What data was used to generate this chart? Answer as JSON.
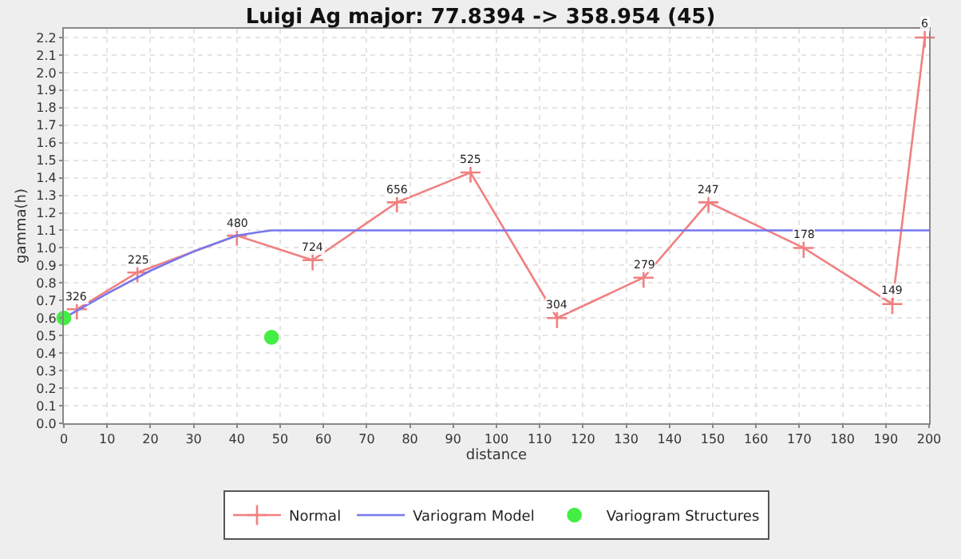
{
  "chart_data": {
    "type": "line",
    "title": "Luigi Ag major: 77.8394 -> 358.954 (45)",
    "xlabel": "distance",
    "ylabel": "gamma(h)",
    "xlim": [
      0,
      200
    ],
    "xticks": [
      0,
      10,
      20,
      30,
      40,
      50,
      60,
      70,
      80,
      90,
      100,
      110,
      120,
      130,
      140,
      150,
      160,
      170,
      180,
      190,
      200
    ],
    "ylim": [
      0,
      2.25
    ],
    "yticks": [
      {
        "value": 0,
        "label": "0.0"
      },
      0.1,
      0.2,
      0.3,
      0.4,
      0.5,
      0.6,
      0.7,
      0.8,
      0.9,
      {
        "value": 1,
        "label": "1.0"
      },
      1.1,
      1.2,
      1.3,
      1.4,
      1.5,
      1.6,
      1.7,
      1.8,
      1.9,
      {
        "value": 2,
        "label": "2.0"
      },
      2.1,
      2.2
    ],
    "annotations": [
      {
        "text": "326",
        "x": 3,
        "y": 0.65
      },
      {
        "text": "225",
        "x": 17,
        "y": 0.86
      },
      {
        "text": "480",
        "x": 40,
        "y": 1.07
      },
      {
        "text": "724",
        "x": 57.5,
        "y": 0.93
      },
      {
        "text": "656",
        "x": 77,
        "y": 1.26
      },
      {
        "text": "525",
        "x": 94,
        "y": 1.43
      },
      {
        "text": "304",
        "x": 114,
        "y": 0.6
      },
      {
        "text": "279",
        "x": 134,
        "y": 0.83
      },
      {
        "text": "247",
        "x": 149,
        "y": 1.26
      },
      {
        "text": "178",
        "x": 171,
        "y": 1.0
      },
      {
        "text": "149",
        "x": 191.5,
        "y": 0.68
      },
      {
        "text": "6",
        "x": 199,
        "y": 2.2
      }
    ],
    "grid": true,
    "legend": "bottom",
    "series": [
      {
        "name": "Normal",
        "color": "#f08080",
        "marker": "cross",
        "x": [
          3,
          17,
          40,
          57.5,
          77,
          94,
          114,
          134,
          149,
          171,
          191.5,
          199
        ],
        "values": [
          0.65,
          0.86,
          1.07,
          0.93,
          1.26,
          1.43,
          0.6,
          0.83,
          1.26,
          1.0,
          0.68,
          2.2
        ]
      },
      {
        "name": "Variogram Model",
        "color": "#7777ee",
        "marker": "none",
        "x": [
          0,
          10,
          20,
          30,
          40,
          45,
          48,
          200
        ],
        "values": [
          0.6,
          0.74,
          0.87,
          0.98,
          1.07,
          1.09,
          1.1,
          1.1
        ]
      },
      {
        "name": "Variogram Structures",
        "type": "scatter",
        "color": "#44ee44",
        "marker": "circle",
        "x": [
          0,
          48
        ],
        "values": [
          0.6,
          0.49
        ]
      }
    ]
  }
}
